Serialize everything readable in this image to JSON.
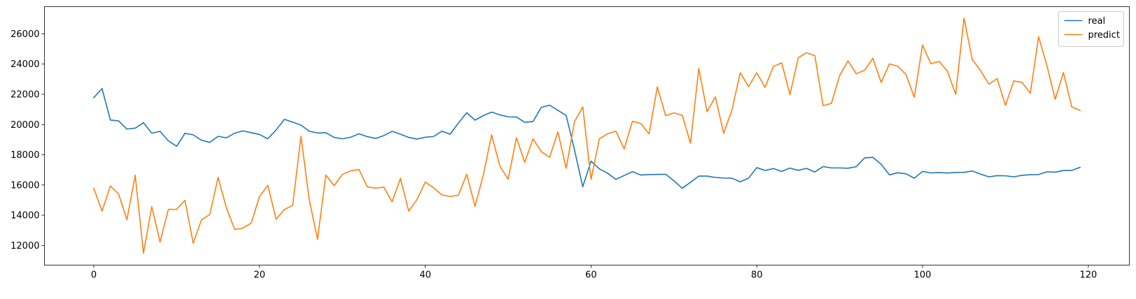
{
  "chart_data": {
    "type": "line",
    "title": "",
    "xlabel": "",
    "ylabel": "",
    "xlim": [
      -5.95,
      124.95
    ],
    "ylim": [
      10700,
      27800
    ],
    "x_ticks": [
      0,
      20,
      40,
      60,
      80,
      100,
      120
    ],
    "y_ticks": [
      12000,
      14000,
      16000,
      18000,
      20000,
      22000,
      24000,
      26000
    ],
    "grid": false,
    "legend_position": "top-right",
    "series": [
      {
        "name": "real",
        "color": "#1f77b4",
        "values": [
          21780,
          22380,
          20300,
          20240,
          19700,
          19760,
          20120,
          19430,
          19550,
          18920,
          18560,
          19420,
          19320,
          18960,
          18820,
          19220,
          19120,
          19430,
          19580,
          19460,
          19340,
          19060,
          19640,
          20340,
          20160,
          19960,
          19560,
          19440,
          19460,
          19150,
          19060,
          19160,
          19390,
          19200,
          19080,
          19270,
          19550,
          19360,
          19150,
          19040,
          19160,
          19210,
          19560,
          19360,
          20100,
          20780,
          20290,
          20590,
          20820,
          20640,
          20510,
          20500,
          20150,
          20200,
          21140,
          21280,
          20940,
          20600,
          18340,
          15880,
          17580,
          17070,
          16780,
          16370,
          16630,
          16880,
          16660,
          16690,
          16700,
          16710,
          16280,
          15780,
          16180,
          16590,
          16590,
          16500,
          16460,
          16450,
          16210,
          16450,
          17150,
          16960,
          17090,
          16900,
          17120,
          16970,
          17100,
          16860,
          17220,
          17130,
          17130,
          17110,
          17210,
          17790,
          17830,
          17380,
          16670,
          16810,
          16740,
          16450,
          16900,
          16800,
          16820,
          16790,
          16830,
          16840,
          16930,
          16720,
          16540,
          16620,
          16610,
          16540,
          16640,
          16680,
          16690,
          16870,
          16850,
          16960,
          16970,
          17170
        ]
      },
      {
        "name": "predict",
        "color": "#ff7f0e",
        "values": [
          15780,
          14280,
          15930,
          15410,
          13700,
          16650,
          11490,
          14570,
          12220,
          14390,
          14390,
          14990,
          12150,
          13700,
          14050,
          16510,
          14500,
          13060,
          13150,
          13480,
          15240,
          15970,
          13740,
          14380,
          14650,
          19220,
          15030,
          12410,
          16660,
          15950,
          16700,
          16940,
          17030,
          15880,
          15790,
          15860,
          14890,
          16440,
          14280,
          15040,
          16190,
          15820,
          15350,
          15240,
          15330,
          16710,
          14590,
          16650,
          19320,
          17250,
          16380,
          19130,
          17500,
          19050,
          18200,
          17830,
          19520,
          17100,
          20180,
          21170,
          16370,
          19050,
          19390,
          19560,
          18390,
          20220,
          20070,
          19380,
          22490,
          20590,
          20770,
          20620,
          18760,
          23710,
          20850,
          21830,
          19420,
          20960,
          23430,
          22510,
          23420,
          22460,
          23840,
          24080,
          21980,
          24420,
          24750,
          24560,
          21250,
          21400,
          23250,
          24210,
          23360,
          23590,
          24390,
          22790,
          24010,
          23860,
          23300,
          21810,
          25260,
          24020,
          24180,
          23530,
          21990,
          27040,
          24300,
          23570,
          22670,
          23040,
          21270,
          22880,
          22790,
          22060,
          25810,
          23910,
          21670,
          23440,
          21170,
          20940
        ]
      }
    ]
  }
}
